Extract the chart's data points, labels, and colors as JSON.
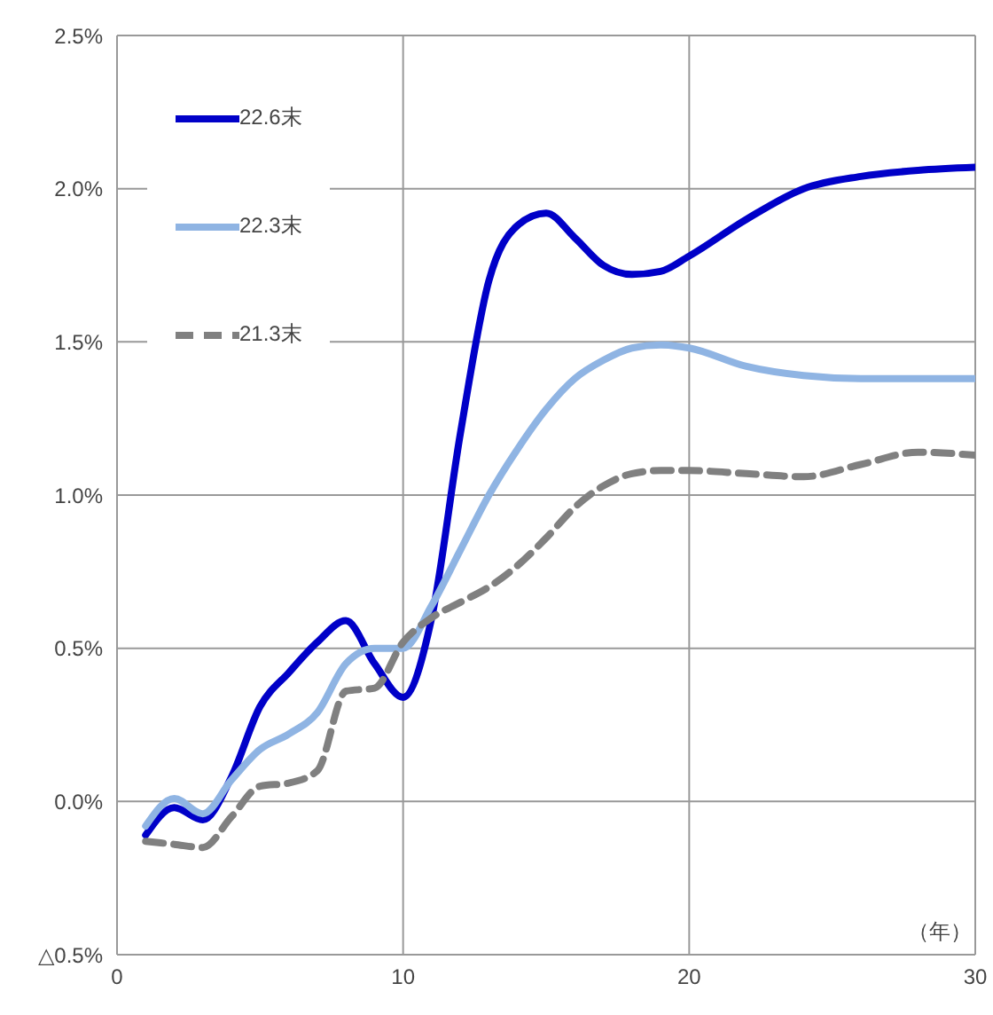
{
  "chart_data": {
    "type": "line",
    "xlabel": "（年）",
    "x": [
      1,
      2,
      3,
      4,
      5,
      6,
      7,
      8,
      9,
      10,
      11,
      12,
      13,
      14,
      15,
      16,
      17,
      18,
      19,
      20,
      22,
      24,
      26,
      28,
      30
    ],
    "series": [
      {
        "name": "22.6末",
        "color": "#0000c8",
        "line_style": "solid",
        "values": [
          -0.11,
          -0.02,
          -0.06,
          0.08,
          0.31,
          0.42,
          0.52,
          0.59,
          0.45,
          0.34,
          0.6,
          1.2,
          1.7,
          1.88,
          1.92,
          1.84,
          1.75,
          1.72,
          1.73,
          1.78,
          1.9,
          2.0,
          2.04,
          2.06,
          2.07
        ]
      },
      {
        "name": "22.3末",
        "color": "#8fb4e3",
        "line_style": "solid",
        "values": [
          -0.08,
          0.01,
          -0.04,
          0.07,
          0.17,
          0.22,
          0.29,
          0.45,
          0.5,
          0.5,
          0.64,
          0.82,
          1.0,
          1.15,
          1.28,
          1.38,
          1.44,
          1.48,
          1.49,
          1.48,
          1.42,
          1.39,
          1.38,
          1.38,
          1.38
        ]
      },
      {
        "name": "21.3末",
        "color": "#808080",
        "line_style": "dashed",
        "values": [
          -0.13,
          -0.14,
          -0.15,
          -0.05,
          0.05,
          0.06,
          0.1,
          0.36,
          0.37,
          0.52,
          0.6,
          0.65,
          0.7,
          0.77,
          0.86,
          0.96,
          1.03,
          1.07,
          1.08,
          1.08,
          1.07,
          1.06,
          1.1,
          1.14,
          1.13
        ]
      }
    ],
    "xlim": [
      0,
      30
    ],
    "xticks": [
      0,
      10,
      20,
      30
    ],
    "ylim": [
      -0.5,
      2.5
    ],
    "yticks": [
      {
        "value": -0.5,
        "label": "△0.5%"
      },
      {
        "value": 0,
        "label": "0.0%"
      },
      {
        "value": 0.5,
        "label": "0.5%"
      },
      {
        "value": 1,
        "label": "1.0%"
      },
      {
        "value": 1.5,
        "label": "1.5%"
      },
      {
        "value": 2,
        "label": "2.0%"
      },
      {
        "value": 2.5,
        "label": "2.5%"
      }
    ],
    "grid": true,
    "legend": "top left",
    "marker": "none"
  }
}
